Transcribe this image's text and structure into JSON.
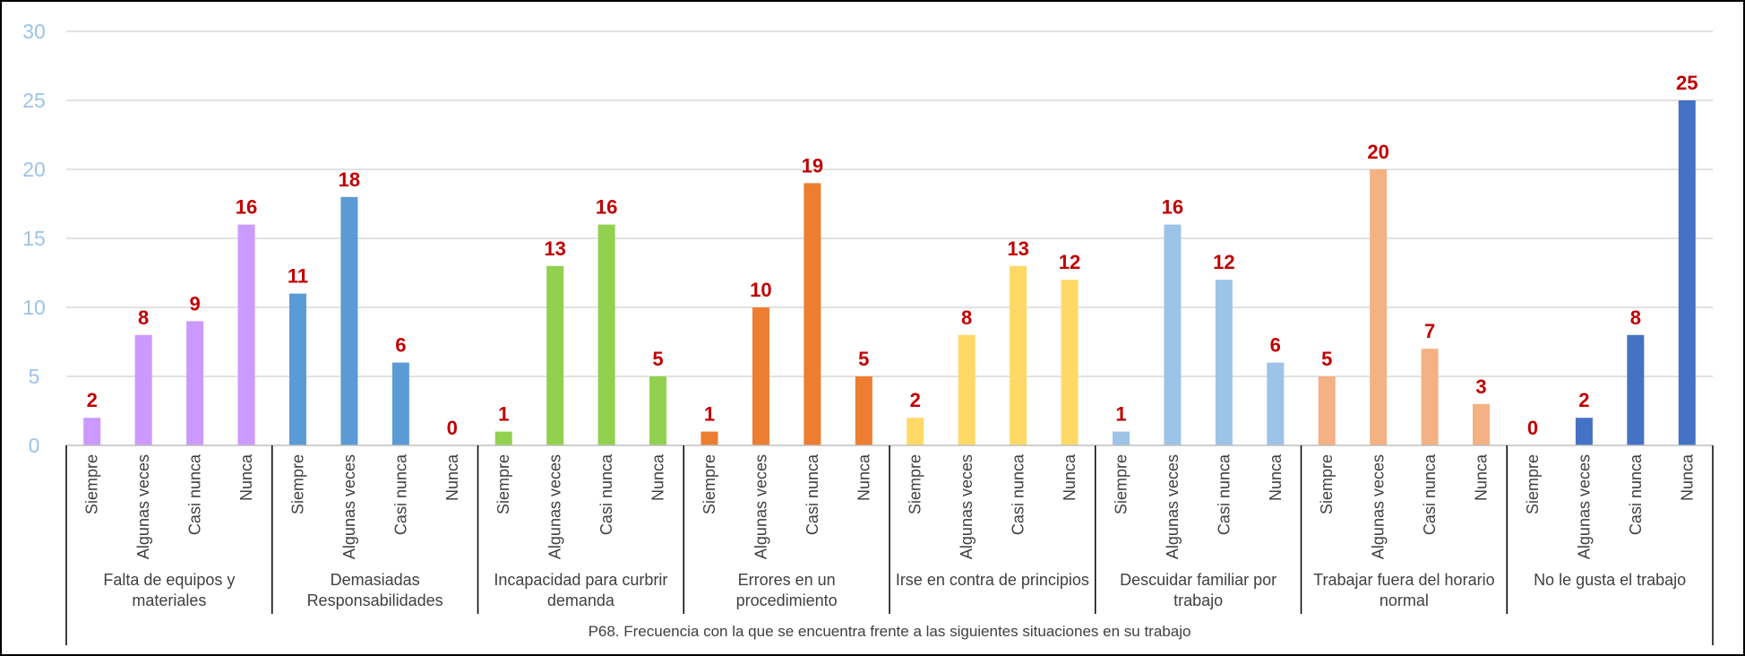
{
  "chart_data": {
    "type": "bar",
    "xlabel": "P68. Frecuencia con la que se encuentra frente a las siguientes situaciones en su trabajo",
    "ylim": [
      0,
      30
    ],
    "yticks": [
      0,
      5,
      10,
      15,
      20,
      25,
      30
    ],
    "grid": true,
    "legend": "none",
    "subcategories": [
      "Siempre",
      "Algunas veces",
      "Casi nunca",
      "Nunca"
    ],
    "groups": [
      {
        "label_lines": [
          "Falta de equipos y",
          "materiales"
        ],
        "color": "#CC99FF",
        "values": [
          2,
          8,
          9,
          16
        ]
      },
      {
        "label_lines": [
          "Demasiadas",
          "Responsabilidades"
        ],
        "color": "#5B9BD5",
        "values": [
          11,
          18,
          6,
          0
        ]
      },
      {
        "label_lines": [
          "Incapacidad para curbrir",
          "demanda"
        ],
        "color": "#92D050",
        "values": [
          1,
          13,
          16,
          5
        ]
      },
      {
        "label_lines": [
          "Errores en un",
          "procedimiento"
        ],
        "color": "#ED7D31",
        "values": [
          1,
          10,
          19,
          5
        ]
      },
      {
        "label_lines": [
          "Irse en contra de principios"
        ],
        "color": "#FFD966",
        "values": [
          2,
          8,
          13,
          12
        ]
      },
      {
        "label_lines": [
          "Descuidar familiar por",
          "trabajo"
        ],
        "color": "#9DC3E6",
        "values": [
          1,
          16,
          12,
          6
        ]
      },
      {
        "label_lines": [
          "Trabajar fuera del horario",
          "normal"
        ],
        "color": "#F4B183",
        "values": [
          5,
          20,
          7,
          3
        ]
      },
      {
        "label_lines": [
          "No le gusta el trabajo"
        ],
        "color": "#4472C4",
        "values": [
          0,
          2,
          8,
          25
        ]
      }
    ],
    "colors": {
      "gridline": "#D9D9D9",
      "axis": "#000000",
      "tick_text": "#9DC3E6",
      "data_label": "#C00000",
      "text": "#404040"
    }
  }
}
